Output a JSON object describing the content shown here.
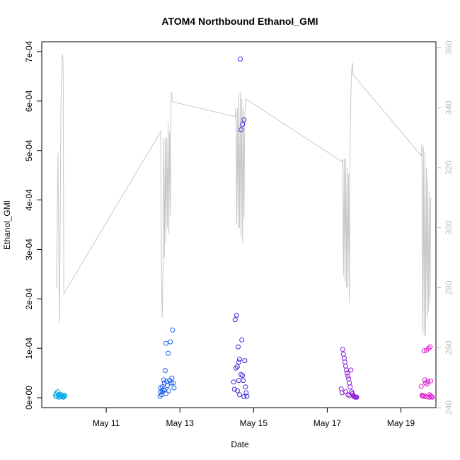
{
  "chart_data": {
    "type": "scatter",
    "title": "ATOM4 Northbound Ethanol_GMI",
    "xlabel": "Date",
    "ylabel": "Ethanol_GMI",
    "xlim": [
      9.25,
      19.95
    ],
    "ylim": [
      -2e-05,
      0.00072
    ],
    "y2lim": [
      240,
      362
    ],
    "x_ticks": [
      {
        "value": 11,
        "label": "May 11"
      },
      {
        "value": 13,
        "label": "May 13"
      },
      {
        "value": 15,
        "label": "May 15"
      },
      {
        "value": 17,
        "label": "May 17"
      },
      {
        "value": 19,
        "label": "May 19"
      }
    ],
    "y_ticks": [
      {
        "value": 0.0,
        "label": "0e+00"
      },
      {
        "value": 0.0001,
        "label": "1e-04"
      },
      {
        "value": 0.0002,
        "label": "2e-04"
      },
      {
        "value": 0.0003,
        "label": "3e-04"
      },
      {
        "value": 0.0004,
        "label": "4e-04"
      },
      {
        "value": 0.0005,
        "label": "5e-04"
      },
      {
        "value": 0.0006,
        "label": "6e-04"
      },
      {
        "value": 0.0007,
        "label": "7e-04"
      }
    ],
    "y2_ticks": [
      {
        "value": 240,
        "label": "240"
      },
      {
        "value": 260,
        "label": "260"
      },
      {
        "value": 280,
        "label": "280"
      },
      {
        "value": 300,
        "label": "300"
      },
      {
        "value": 320,
        "label": "320"
      },
      {
        "value": 340,
        "label": "340"
      },
      {
        "value": 360,
        "label": "360"
      }
    ],
    "grid": false,
    "colors": {
      "altitude_line": "#c8c8c8",
      "right_axis": "#bdbdbd",
      "flight_1": "#00a8e8",
      "flight_2": "#1a5cf0",
      "flight_3": "#3a2ae0",
      "flight_4": "#8a1ad8",
      "flight_5": "#e01ad0"
    },
    "altitude_line": [
      [
        9.65,
        280
      ],
      [
        9.67,
        305
      ],
      [
        9.69,
        325
      ],
      [
        9.71,
        295
      ],
      [
        9.73,
        268
      ],
      [
        9.75,
        300
      ],
      [
        9.77,
        340
      ],
      [
        9.79,
        353
      ],
      [
        9.81,
        358
      ],
      [
        9.83,
        355
      ],
      [
        9.85,
        278
      ],
      [
        12.48,
        332
      ],
      [
        12.5,
        284
      ],
      [
        12.52,
        270
      ],
      [
        12.54,
        284
      ],
      [
        12.56,
        330
      ],
      [
        12.58,
        290
      ],
      [
        12.6,
        330
      ],
      [
        12.62,
        295
      ],
      [
        12.64,
        330
      ],
      [
        12.66,
        300
      ],
      [
        12.68,
        335
      ],
      [
        12.7,
        298
      ],
      [
        12.72,
        332
      ],
      [
        12.74,
        304
      ],
      [
        12.76,
        345
      ],
      [
        12.78,
        345
      ],
      [
        12.8,
        342
      ],
      [
        14.5,
        337
      ],
      [
        14.52,
        340
      ],
      [
        14.54,
        301
      ],
      [
        14.56,
        340
      ],
      [
        14.58,
        300
      ],
      [
        14.6,
        345
      ],
      [
        14.62,
        300
      ],
      [
        14.64,
        345
      ],
      [
        14.66,
        297
      ],
      [
        14.68,
        343
      ],
      [
        14.7,
        295
      ],
      [
        14.72,
        340
      ],
      [
        14.74,
        303
      ],
      [
        14.76,
        336
      ],
      [
        14.78,
        343
      ],
      [
        17.4,
        322
      ],
      [
        17.42,
        323
      ],
      [
        17.44,
        284
      ],
      [
        17.46,
        323
      ],
      [
        17.48,
        282
      ],
      [
        17.5,
        323
      ],
      [
        17.52,
        280
      ],
      [
        17.54,
        320
      ],
      [
        17.56,
        280
      ],
      [
        17.58,
        318
      ],
      [
        17.6,
        275
      ],
      [
        17.62,
        328
      ],
      [
        17.64,
        345
      ],
      [
        17.66,
        352
      ],
      [
        17.68,
        355
      ],
      [
        17.7,
        351
      ],
      [
        19.55,
        324
      ],
      [
        19.57,
        328
      ],
      [
        19.59,
        265
      ],
      [
        19.61,
        327
      ],
      [
        19.63,
        264
      ],
      [
        19.65,
        325
      ],
      [
        19.67,
        264
      ],
      [
        19.69,
        320
      ],
      [
        19.71,
        270
      ],
      [
        19.73,
        316
      ],
      [
        19.75,
        272
      ],
      [
        19.77,
        312
      ],
      [
        19.79,
        275
      ],
      [
        19.81,
        310
      ]
    ],
    "series": [
      {
        "color": "#00a8e8",
        "points": [
          [
            9.62,
            4e-06
          ],
          [
            9.64,
            8e-06
          ],
          [
            9.66,
            2e-06
          ],
          [
            9.68,
            1.2e-05
          ],
          [
            9.7,
            5e-06
          ],
          [
            9.72,
            1e-06
          ],
          [
            9.74,
            7e-06
          ],
          [
            9.76,
            3e-06
          ],
          [
            9.78,
            6e-06
          ],
          [
            9.8,
            2e-06
          ],
          [
            9.82,
            4e-06
          ],
          [
            9.84,
            1e-06
          ],
          [
            9.86,
            3e-06
          ],
          [
            9.88,
            5e-06
          ]
        ]
      },
      {
        "color": "#1a5cf0",
        "points": [
          [
            12.46,
            3e-06
          ],
          [
            12.48,
            1.2e-05
          ],
          [
            12.5,
            6e-06
          ],
          [
            12.52,
            2.2e-05
          ],
          [
            12.54,
            1.6e-05
          ],
          [
            12.56,
            3.6e-05
          ],
          [
            12.58,
            3e-05
          ],
          [
            12.6,
            5.5e-05
          ],
          [
            12.62,
            0.00011
          ],
          [
            12.64,
            3.3e-05
          ],
          [
            12.66,
            2.5e-05
          ],
          [
            12.68,
            9e-05
          ],
          [
            12.7,
            1.4e-05
          ],
          [
            12.72,
            3.5e-05
          ],
          [
            12.74,
            0.000113
          ],
          [
            12.76,
            3e-05
          ],
          [
            12.78,
            4e-05
          ],
          [
            12.8,
            0.000137
          ],
          [
            12.82,
            3e-05
          ],
          [
            12.84,
            2e-05
          ],
          [
            12.48,
            2e-05
          ],
          [
            12.52,
            1.2e-05
          ],
          [
            12.58,
            1.5e-05
          ],
          [
            12.62,
            8e-06
          ]
        ]
      },
      {
        "color": "#3a2ae0",
        "points": [
          [
            14.46,
            3.2e-05
          ],
          [
            14.48,
            1.7e-05
          ],
          [
            14.5,
            0.000158
          ],
          [
            14.52,
            6e-05
          ],
          [
            14.54,
            0.000167
          ],
          [
            14.56,
            6.3e-05
          ],
          [
            14.58,
            0.000103
          ],
          [
            14.6,
            7.2e-05
          ],
          [
            14.62,
            7.8e-05
          ],
          [
            14.64,
            0.000685
          ],
          [
            14.66,
            4.7e-05
          ],
          [
            14.68,
            0.000117
          ],
          [
            14.7,
            0.000553
          ],
          [
            14.72,
            3.5e-05
          ],
          [
            14.74,
            0.000562
          ],
          [
            14.76,
            7.5e-05
          ],
          [
            14.78,
            2.2e-05
          ],
          [
            14.8,
            1e-05
          ],
          [
            14.82,
            3e-06
          ],
          [
            14.56,
            1.4e-05
          ],
          [
            14.62,
            6e-06
          ],
          [
            14.66,
            0.000542
          ],
          [
            14.7,
            4.5e-05
          ],
          [
            14.74,
            2e-06
          ],
          [
            14.6,
            3.5e-05
          ]
        ]
      },
      {
        "color": "#8a1ad8",
        "points": [
          [
            17.38,
            1.8e-05
          ],
          [
            17.4,
            1e-05
          ],
          [
            17.42,
            9.8e-05
          ],
          [
            17.44,
            8.8e-05
          ],
          [
            17.46,
            8e-05
          ],
          [
            17.48,
            7.2e-05
          ],
          [
            17.5,
            6.4e-05
          ],
          [
            17.52,
            5.6e-05
          ],
          [
            17.54,
            5e-05
          ],
          [
            17.56,
            4.4e-05
          ],
          [
            17.58,
            3.8e-05
          ],
          [
            17.6,
            3e-05
          ],
          [
            17.62,
            2.2e-05
          ],
          [
            17.64,
            5.6e-05
          ],
          [
            17.66,
            1.2e-05
          ],
          [
            17.68,
            8e-06
          ],
          [
            17.7,
            5e-06
          ],
          [
            17.72,
            3e-06
          ],
          [
            17.74,
            2e-06
          ],
          [
            17.76,
            1e-06
          ],
          [
            17.78,
            1e-06
          ],
          [
            17.8,
            1e-06
          ],
          [
            17.5,
            1.2e-05
          ],
          [
            17.56,
            6e-06
          ],
          [
            17.6,
            4e-06
          ]
        ]
      },
      {
        "color": "#e01ad0",
        "points": [
          [
            19.55,
            2.3e-05
          ],
          [
            19.57,
            5e-06
          ],
          [
            19.59,
            4e-06
          ],
          [
            19.61,
            3e-06
          ],
          [
            19.63,
            9.5e-05
          ],
          [
            19.65,
            3.6e-05
          ],
          [
            19.67,
            3e-05
          ],
          [
            19.69,
            9.6e-05
          ],
          [
            19.71,
            2.8e-05
          ],
          [
            19.73,
            3.3e-05
          ],
          [
            19.75,
            0.0001
          ],
          [
            19.77,
            6e-06
          ],
          [
            19.79,
            0.000103
          ],
          [
            19.81,
            3.4e-05
          ],
          [
            19.83,
            2e-06
          ],
          [
            19.85,
            1e-06
          ],
          [
            19.65,
            3e-06
          ],
          [
            19.71,
            2e-06
          ],
          [
            19.77,
            1e-06
          ],
          [
            19.81,
            4e-06
          ]
        ]
      }
    ]
  }
}
